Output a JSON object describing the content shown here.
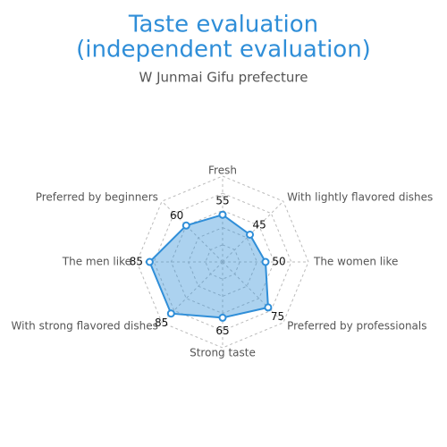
{
  "chart_data": {
    "type": "radar",
    "title": [
      "Taste evaluation",
      "(independent evaluation)"
    ],
    "subtitle": "W  Junmai Gifu prefecture",
    "categories": [
      "Fresh",
      "With lightly flavored dishes",
      "The women like",
      "Preferred by professionals",
      "Strong taste",
      "With strong flavored dishes",
      "The men like",
      "Preferred by beginners"
    ],
    "values": [
      55,
      45,
      50,
      75,
      65,
      85,
      85,
      60
    ],
    "color": "#2f8ed8",
    "rlim": [
      0,
      100
    ],
    "rticks": [
      20,
      40,
      60,
      80,
      100
    ],
    "grid": true
  }
}
